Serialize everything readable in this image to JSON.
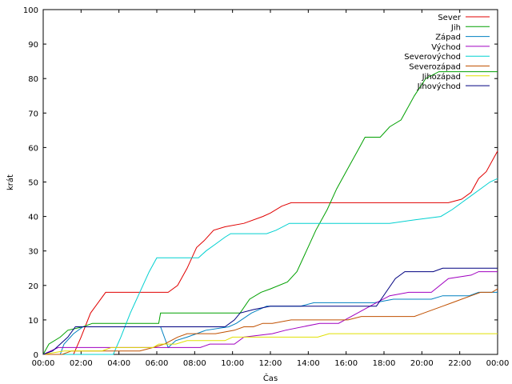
{
  "chart_data": {
    "type": "line",
    "xlabel": "Čas",
    "ylabel": "krát",
    "ylim": [
      0,
      100
    ],
    "y_ticks": [
      0,
      10,
      20,
      30,
      40,
      50,
      60,
      70,
      80,
      90,
      100
    ],
    "x_range_hours": [
      0,
      24
    ],
    "x_ticks": [
      "00:00",
      "02:00",
      "04:00",
      "06:00",
      "08:00",
      "10:00",
      "12:00",
      "14:00",
      "16:00",
      "18:00",
      "20:00",
      "22:00",
      "00:00"
    ],
    "grid": false,
    "legend_position": "top-right",
    "series": [
      {
        "name": "Sever",
        "color": "#e00000",
        "points": [
          [
            0,
            0
          ],
          [
            1.6,
            0
          ],
          [
            2.0,
            5
          ],
          [
            2.5,
            12
          ],
          [
            3.3,
            18
          ],
          [
            6.6,
            18
          ],
          [
            7.1,
            20
          ],
          [
            7.6,
            25
          ],
          [
            8.1,
            31
          ],
          [
            8.5,
            33
          ],
          [
            9.0,
            36
          ],
          [
            9.6,
            37
          ],
          [
            10.6,
            38
          ],
          [
            11.6,
            40
          ],
          [
            12.0,
            41
          ],
          [
            12.6,
            43
          ],
          [
            13.1,
            44
          ],
          [
            21.4,
            44
          ],
          [
            22.1,
            45
          ],
          [
            22.6,
            47
          ],
          [
            23.0,
            51
          ],
          [
            23.4,
            53
          ],
          [
            23.7,
            56
          ],
          [
            24.0,
            59
          ]
        ]
      },
      {
        "name": "Jih",
        "color": "#00a000",
        "points": [
          [
            0,
            0
          ],
          [
            0.3,
            3
          ],
          [
            0.9,
            5
          ],
          [
            1.3,
            7
          ],
          [
            2.1,
            8
          ],
          [
            2.6,
            9
          ],
          [
            6.1,
            9
          ],
          [
            6.2,
            12
          ],
          [
            10.4,
            12
          ],
          [
            10.9,
            16
          ],
          [
            11.5,
            18
          ],
          [
            12.0,
            19
          ],
          [
            12.9,
            21
          ],
          [
            13.4,
            24
          ],
          [
            13.9,
            30
          ],
          [
            14.4,
            36
          ],
          [
            15.0,
            42
          ],
          [
            15.5,
            48
          ],
          [
            16.1,
            54
          ],
          [
            16.6,
            59
          ],
          [
            17.0,
            63
          ],
          [
            17.8,
            63
          ],
          [
            18.3,
            66
          ],
          [
            18.9,
            68
          ],
          [
            19.6,
            75
          ],
          [
            20.2,
            80
          ],
          [
            20.9,
            82
          ],
          [
            24.0,
            82
          ]
        ]
      },
      {
        "name": "Západ",
        "color": "#0080c0",
        "points": [
          [
            0,
            0
          ],
          [
            0.9,
            0
          ],
          [
            1.1,
            3
          ],
          [
            1.6,
            6
          ],
          [
            2.1,
            8
          ],
          [
            6.2,
            8
          ],
          [
            6.6,
            2
          ],
          [
            7.0,
            4
          ],
          [
            7.6,
            5
          ],
          [
            8.1,
            6
          ],
          [
            8.6,
            7
          ],
          [
            9.8,
            8
          ],
          [
            10.2,
            9
          ],
          [
            11.0,
            12
          ],
          [
            11.8,
            14
          ],
          [
            13.6,
            14
          ],
          [
            14.3,
            15
          ],
          [
            17.5,
            15
          ],
          [
            18.5,
            16
          ],
          [
            20.5,
            16
          ],
          [
            21.1,
            17
          ],
          [
            22.5,
            17
          ],
          [
            23.0,
            18
          ],
          [
            24.0,
            18
          ]
        ]
      },
      {
        "name": "Východ",
        "color": "#a000c0",
        "points": [
          [
            0,
            0
          ],
          [
            0.8,
            2
          ],
          [
            3.5,
            2
          ],
          [
            6.2,
            2
          ],
          [
            8.3,
            2
          ],
          [
            8.8,
            3
          ],
          [
            10.1,
            3
          ],
          [
            10.6,
            5
          ],
          [
            12.1,
            6
          ],
          [
            12.8,
            7
          ],
          [
            14.6,
            9
          ],
          [
            15.6,
            9
          ],
          [
            16.6,
            12
          ],
          [
            17.6,
            15
          ],
          [
            18.3,
            17
          ],
          [
            19.3,
            18
          ],
          [
            20.5,
            18
          ],
          [
            21.4,
            22
          ],
          [
            22.6,
            23
          ],
          [
            23.0,
            24
          ],
          [
            24.0,
            24
          ]
        ]
      },
      {
        "name": "Severovýchod",
        "color": "#00d0d0",
        "points": [
          [
            0,
            0
          ],
          [
            3.7,
            0
          ],
          [
            4.1,
            5
          ],
          [
            4.6,
            12
          ],
          [
            5.1,
            18
          ],
          [
            5.6,
            24
          ],
          [
            6.0,
            28
          ],
          [
            8.2,
            28
          ],
          [
            8.6,
            30
          ],
          [
            9.1,
            32
          ],
          [
            9.6,
            34
          ],
          [
            9.9,
            35
          ],
          [
            11.8,
            35
          ],
          [
            12.3,
            36
          ],
          [
            13.0,
            38
          ],
          [
            18.3,
            38
          ],
          [
            19.6,
            39
          ],
          [
            21.0,
            40
          ],
          [
            21.6,
            42
          ],
          [
            22.1,
            44
          ],
          [
            22.6,
            46
          ],
          [
            23.1,
            48
          ],
          [
            23.6,
            50
          ],
          [
            24.0,
            51
          ]
        ]
      },
      {
        "name": "Severozápad",
        "color": "#c05000",
        "points": [
          [
            0,
            0
          ],
          [
            1.0,
            0
          ],
          [
            1.5,
            1
          ],
          [
            5.1,
            1
          ],
          [
            5.8,
            2
          ],
          [
            6.4,
            3
          ],
          [
            7.1,
            5
          ],
          [
            7.6,
            6
          ],
          [
            9.1,
            6
          ],
          [
            10.1,
            7
          ],
          [
            10.6,
            8
          ],
          [
            11.1,
            8
          ],
          [
            11.6,
            9
          ],
          [
            12.1,
            9
          ],
          [
            13.1,
            10
          ],
          [
            15.1,
            10
          ],
          [
            16.1,
            10
          ],
          [
            16.8,
            11
          ],
          [
            18.6,
            11
          ],
          [
            19.6,
            11
          ],
          [
            20.1,
            12
          ],
          [
            21.1,
            14
          ],
          [
            21.6,
            15
          ],
          [
            22.1,
            16
          ],
          [
            22.6,
            17
          ],
          [
            23.1,
            18
          ],
          [
            23.7,
            18
          ],
          [
            24.0,
            19
          ]
        ]
      },
      {
        "name": "Jihozápad",
        "color": "#e0e000",
        "points": [
          [
            0,
            0
          ],
          [
            1.1,
            1
          ],
          [
            3.1,
            1
          ],
          [
            3.6,
            2
          ],
          [
            5.8,
            2
          ],
          [
            6.1,
            3
          ],
          [
            7.0,
            3
          ],
          [
            7.6,
            4
          ],
          [
            9.3,
            4
          ],
          [
            9.6,
            4
          ],
          [
            10.0,
            5
          ],
          [
            14.0,
            5
          ],
          [
            14.5,
            5
          ],
          [
            15.1,
            6
          ],
          [
            24.0,
            6
          ]
        ]
      },
      {
        "name": "Jihovýchod",
        "color": "#000080",
        "points": [
          [
            0,
            0
          ],
          [
            0.5,
            1
          ],
          [
            0.9,
            3
          ],
          [
            1.3,
            5
          ],
          [
            1.7,
            8
          ],
          [
            9.6,
            8
          ],
          [
            10.1,
            10
          ],
          [
            10.4,
            12
          ],
          [
            11.1,
            13
          ],
          [
            12.0,
            14
          ],
          [
            17.6,
            14
          ],
          [
            18.1,
            18
          ],
          [
            18.6,
            22
          ],
          [
            19.1,
            24
          ],
          [
            20.6,
            24
          ],
          [
            21.1,
            25
          ],
          [
            24.0,
            25
          ]
        ]
      }
    ]
  }
}
